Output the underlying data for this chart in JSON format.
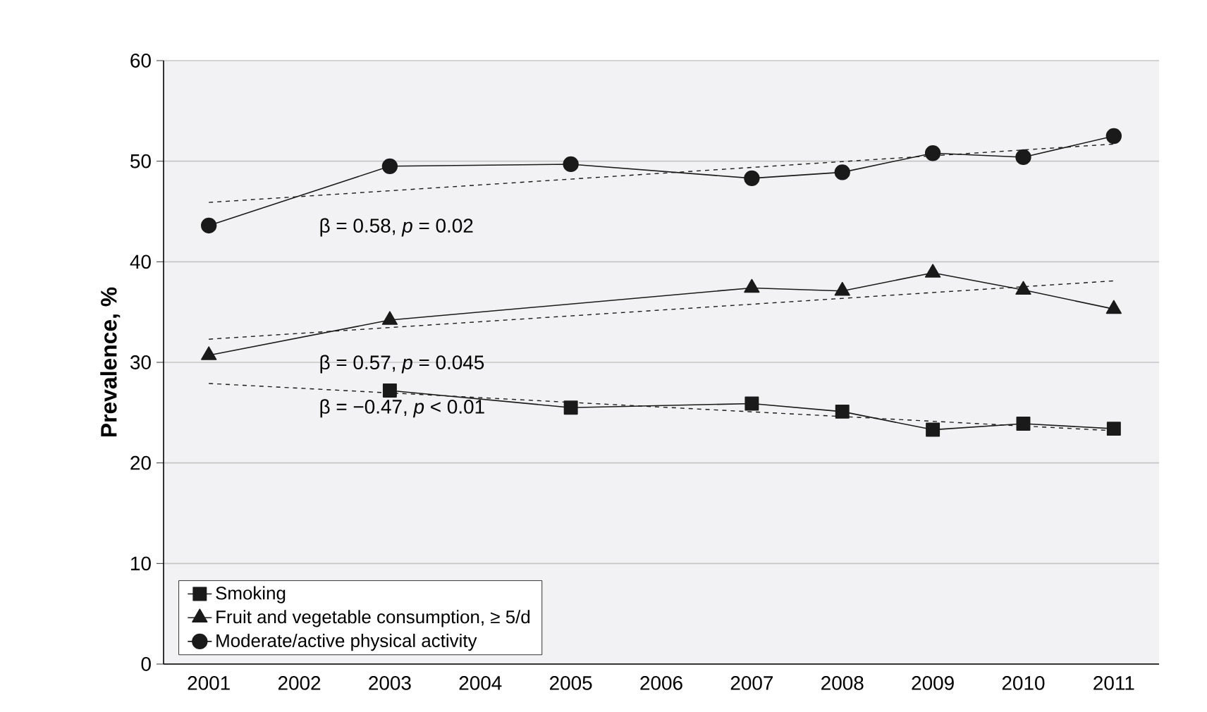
{
  "chart_data": {
    "type": "line",
    "ylabel": "Prevalence, %",
    "categories": [
      "2001",
      "2002",
      "2003",
      "2004",
      "2005",
      "2006",
      "2007",
      "2008",
      "2009",
      "2010",
      "2011"
    ],
    "series": [
      {
        "name": "Smoking",
        "color": "#1a1a1a",
        "marker": "square",
        "values": [
          null,
          null,
          27.2,
          null,
          25.5,
          null,
          25.9,
          25.1,
          23.3,
          23.9,
          23.4
        ]
      },
      {
        "name": "Fruit and vegetable consumption, ≥ 5/d",
        "color": "#1a1a1a",
        "marker": "triangle",
        "values": [
          30.7,
          null,
          34.2,
          null,
          null,
          null,
          37.4,
          37.1,
          38.9,
          37.2,
          35.3
        ]
      },
      {
        "name": "Moderate/active physical activity",
        "color": "#1a1a1a",
        "marker": "circle",
        "values": [
          43.6,
          null,
          49.5,
          null,
          49.7,
          null,
          48.3,
          48.9,
          50.8,
          50.4,
          52.5
        ]
      },
      {
        "color": "#1a1a1a",
        "marker": "none",
        "line_style": "dashed",
        "values": [
          27.9,
          null,
          null,
          null,
          null,
          null,
          null,
          null,
          null,
          null,
          23.2
        ]
      },
      {
        "color": "#1a1a1a",
        "marker": "none",
        "line_style": "dashed",
        "values": [
          32.3,
          null,
          null,
          null,
          null,
          null,
          null,
          null,
          null,
          null,
          38.1
        ]
      },
      {
        "color": "#1a1a1a",
        "marker": "none",
        "line_style": "dashed",
        "values": [
          45.9,
          null,
          null,
          null,
          null,
          null,
          null,
          null,
          null,
          null,
          51.7
        ]
      }
    ],
    "annotations": [
      "β = −0.47, *p* < 0.01",
      "β = 0.57, *p* = 0.045",
      "β = 0.58, *p* = 0.02"
    ],
    "ylim": [
      0,
      60
    ],
    "yticks": [
      0,
      10,
      20,
      30,
      40,
      50,
      60
    ],
    "grid": "y",
    "legend": "bottom left"
  }
}
